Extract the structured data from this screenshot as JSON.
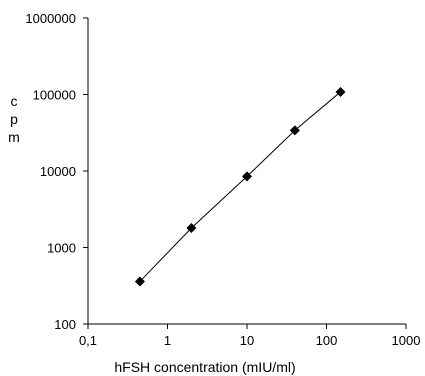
{
  "chart_data": {
    "type": "scatter",
    "title": "",
    "xlabel": "hFSH concentration (mIU/ml)",
    "ylabel": "cpm",
    "x_scale": "log",
    "y_scale": "log",
    "xlim": [
      0.1,
      1000
    ],
    "ylim": [
      100,
      1000000
    ],
    "x_ticks": [
      0.1,
      1,
      10,
      100,
      1000
    ],
    "x_tick_labels": [
      "0,1",
      "1",
      "10",
      "100",
      "1000"
    ],
    "y_ticks": [
      100,
      1000,
      10000,
      100000,
      1000000
    ],
    "y_tick_labels": [
      "100",
      "1000",
      "10000",
      "100000",
      "1000000"
    ],
    "grid": false,
    "legend": false,
    "series": [
      {
        "marker": "diamond",
        "line": true,
        "color": "#000000",
        "x": [
          0.45,
          2,
          10,
          40,
          150
        ],
        "y": [
          360,
          1800,
          8500,
          34000,
          108000
        ]
      }
    ]
  }
}
